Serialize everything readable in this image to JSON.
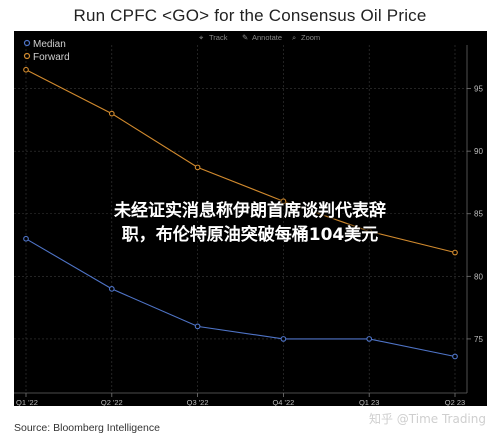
{
  "title": "Run CPFC <GO> for the Consensus Oil Price",
  "toolbar": {
    "track_label": "Track",
    "annotate_label": "Annotate",
    "zoom_label": "Zoom"
  },
  "overlay": {
    "line1": "未经证实消息称伊朗首席谈判代表辞",
    "line2": "职，布伦特原油突破每桶104美元"
  },
  "source": "Source: Bloomberg Intelligence",
  "watermark": "知乎 @Time Trading",
  "colors": {
    "median": "#4f74c7",
    "forward": "#d18a2e",
    "background": "#000000",
    "grid": "#3a3a3a"
  },
  "chart_data": {
    "type": "line",
    "categories": [
      "Q1 '22",
      "Q2 '22",
      "Q3 '22",
      "Q4 '22",
      "Q1 23",
      "Q2 23"
    ],
    "series": [
      {
        "name": "Median",
        "values": [
          83.0,
          79.0,
          76.0,
          75.0,
          75.0,
          73.6
        ]
      },
      {
        "name": "Forward",
        "values": [
          96.5,
          93.0,
          88.7,
          86.0,
          83.6,
          81.9
        ]
      }
    ],
    "yticks": [
      75,
      80,
      85,
      90,
      95
    ],
    "ylim": [
      71,
      98
    ],
    "y_axis_side": "right",
    "legend_position": "top-left",
    "grid": true
  }
}
